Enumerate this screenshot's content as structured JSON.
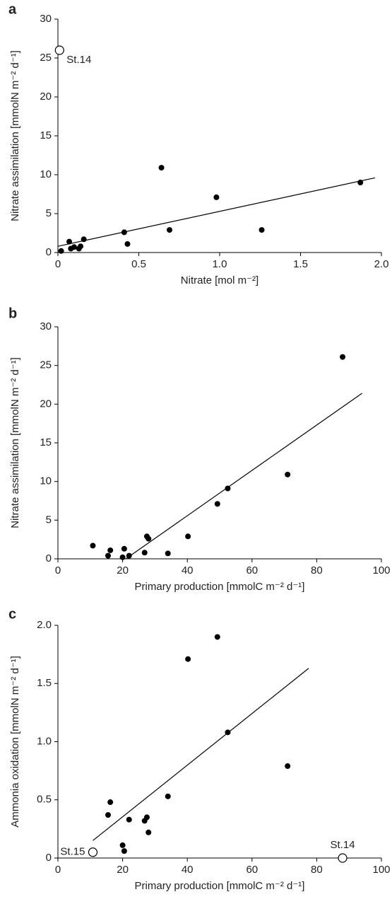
{
  "chart_data": [
    {
      "type": "scatter",
      "panel": "a",
      "xlabel": "Nitrate [mol m⁻²]",
      "ylabel": "Nitrate assimilation [mmolN m⁻² d⁻¹]",
      "xlim": [
        0,
        2
      ],
      "ylim": [
        0,
        30
      ],
      "xticks": [
        0,
        0.5,
        {
          "value": 1,
          "label": "1.0"
        },
        1.5,
        {
          "value": 2,
          "label": "2.0"
        }
      ],
      "yticks": [
        0,
        5,
        10,
        15,
        20,
        25,
        30
      ],
      "color": "#000000",
      "points": {
        "x": [
          0.02,
          0.07,
          0.08,
          0.1,
          0.13,
          0.14,
          0.16,
          0.41,
          0.43,
          0.64,
          0.69,
          0.98,
          1.26,
          1.87
        ],
        "values": [
          0.2,
          1.4,
          0.5,
          0.7,
          0.5,
          0.8,
          1.7,
          2.6,
          1.1,
          10.9,
          2.9,
          7.1,
          2.9,
          9.0
        ]
      },
      "open_points": {
        "x": [
          0.01
        ],
        "values": [
          26.0
        ],
        "labels": [
          "St.14"
        ]
      },
      "fit": {
        "x": [
          0,
          1.96
        ],
        "values": [
          0.8,
          9.6
        ]
      }
    },
    {
      "type": "scatter",
      "panel": "b",
      "xlabel": "Primary production [mmolC m⁻² d⁻¹]",
      "ylabel": "Nitrate assimilation [mmolN m⁻² d⁻¹]",
      "xlim": [
        0,
        100
      ],
      "ylim": [
        0,
        30
      ],
      "xticks": [
        0,
        20,
        40,
        60,
        80,
        100
      ],
      "yticks": [
        0,
        5,
        10,
        15,
        20,
        25,
        30
      ],
      "color": "#000000",
      "points": {
        "x": [
          10.8,
          15.5,
          16.2,
          20,
          20.5,
          22,
          26.8,
          27.5,
          28,
          34,
          40.2,
          49.3,
          52.5,
          71,
          88
        ],
        "values": [
          1.7,
          0.4,
          1.1,
          0.2,
          1.3,
          0.4,
          0.8,
          2.9,
          2.6,
          0.7,
          2.9,
          7.1,
          9.1,
          10.9,
          26.1
        ]
      },
      "fit": {
        "x": [
          21,
          94
        ],
        "values": [
          0,
          21.4
        ]
      }
    },
    {
      "type": "scatter",
      "panel": "c",
      "xlabel": "Primary production [mmolC m⁻² d⁻¹]",
      "ylabel": "Ammonia oxidation [mmolN m⁻² d⁻¹]",
      "xlim": [
        0,
        100
      ],
      "ylim": [
        0,
        2
      ],
      "xticks": [
        0,
        20,
        40,
        60,
        80,
        100
      ],
      "yticks": [
        0,
        0.5,
        {
          "value": 1,
          "label": "1.0"
        },
        1.5,
        {
          "value": 2,
          "label": "2.0"
        }
      ],
      "color": "#000000",
      "points": {
        "x": [
          15.5,
          16.2,
          20,
          20.5,
          22,
          26.8,
          27.5,
          28,
          34,
          40.2,
          49.3,
          52.5,
          71
        ],
        "values": [
          0.37,
          0.48,
          0.11,
          0.06,
          0.33,
          0.32,
          0.35,
          0.22,
          0.53,
          1.71,
          1.9,
          1.08,
          0.79
        ]
      },
      "open_points": {
        "x": [
          10.8,
          88
        ],
        "values": [
          0.05,
          0.0
        ],
        "labels": [
          "St.15",
          "St.14"
        ]
      },
      "fit": {
        "x": [
          10.8,
          77.5
        ],
        "values": [
          0.15,
          1.63
        ]
      }
    }
  ]
}
